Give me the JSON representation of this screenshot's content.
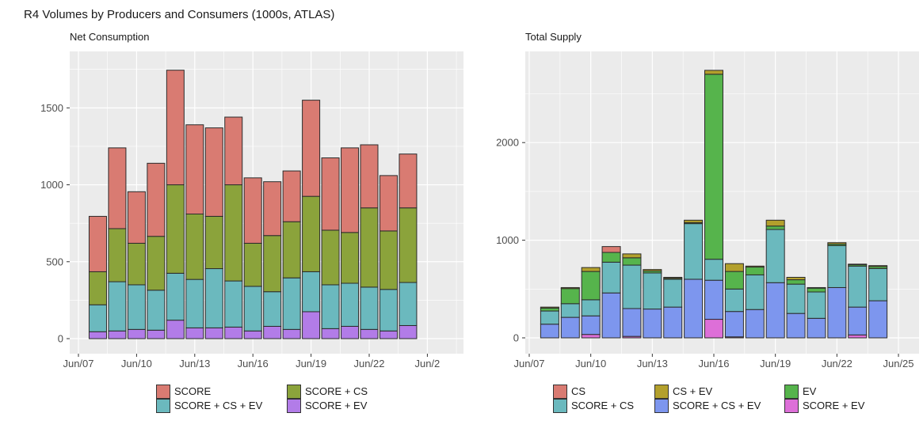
{
  "title": "R4 Volumes by Producers and Consumers (1000s, ATLAS)",
  "colors": {
    "panel_background": "#EBEBEB",
    "gridline": "#FFFFFF",
    "bar_outline": "#2B2B2B",
    "axis_text": "#4D4D4D",
    "title_text": "#1A1A1A"
  },
  "chart_data": [
    {
      "type": "bar",
      "stacked": true,
      "title": "Net Consumption",
      "x_years": [
        2008,
        2009,
        2010,
        2011,
        2012,
        2013,
        2014,
        2015,
        2016,
        2017,
        2018,
        2019,
        2020,
        2021,
        2022,
        2023,
        2024
      ],
      "x_tick_labels": [
        "Jun/07",
        "Jun/10",
        "Jun/13",
        "Jun/16",
        "Jun/19",
        "Jun/22",
        "Jun/2"
      ],
      "y_ticks": [
        0,
        500,
        1000,
        1500
      ],
      "y_minor_ticks": [
        250,
        750,
        1250,
        1750
      ],
      "ylim": [
        0,
        1867
      ],
      "grid": true,
      "legend_position": "bottom",
      "legend_rows": [
        [
          "SCORE",
          "SCORE + CS"
        ],
        [
          "SCORE + CS + EV",
          "SCORE + EV"
        ]
      ],
      "series": [
        {
          "name": "SCORE + EV",
          "color": "#B27CE8",
          "values": [
            45,
            50,
            60,
            55,
            120,
            70,
            70,
            75,
            50,
            80,
            60,
            175,
            65,
            80,
            60,
            50,
            85
          ]
        },
        {
          "name": "SCORE + CS + EV",
          "color": "#6BB9BE",
          "values": [
            175,
            320,
            290,
            260,
            305,
            315,
            385,
            300,
            290,
            225,
            335,
            260,
            285,
            280,
            275,
            270,
            280
          ]
        },
        {
          "name": "SCORE + CS",
          "color": "#8BA33B",
          "values": [
            215,
            345,
            270,
            350,
            575,
            425,
            340,
            625,
            280,
            365,
            365,
            490,
            355,
            330,
            515,
            380,
            485
          ]
        },
        {
          "name": "SCORE",
          "color": "#D97B72",
          "values": [
            360,
            525,
            335,
            475,
            745,
            580,
            575,
            440,
            425,
            350,
            330,
            625,
            470,
            550,
            410,
            360,
            350
          ]
        }
      ]
    },
    {
      "type": "bar",
      "stacked": true,
      "title": "Total Supply",
      "x_years": [
        2008,
        2009,
        2010,
        2011,
        2012,
        2013,
        2014,
        2015,
        2016,
        2017,
        2018,
        2019,
        2020,
        2021,
        2022,
        2023,
        2024
      ],
      "x_tick_labels": [
        "Jun/07",
        "Jun/10",
        "Jun/13",
        "Jun/16",
        "Jun/19",
        "Jun/22",
        "Jun/25"
      ],
      "y_ticks": [
        0,
        1000,
        2000
      ],
      "y_minor_ticks": [
        500,
        1500,
        2500
      ],
      "ylim": [
        0,
        2935
      ],
      "grid": true,
      "legend_position": "bottom",
      "legend_rows": [
        [
          "CS",
          "CS + EV",
          "EV"
        ],
        [
          "SCORE + CS",
          "SCORE + CS + EV",
          "SCORE + EV"
        ]
      ],
      "series": [
        {
          "name": "SCORE + EV",
          "color": "#DD6FD8",
          "values": [
            0,
            0,
            35,
            0,
            15,
            0,
            0,
            0,
            190,
            10,
            0,
            0,
            0,
            0,
            0,
            30,
            0
          ]
        },
        {
          "name": "SCORE + CS + EV",
          "color": "#7D96EE",
          "values": [
            140,
            210,
            190,
            460,
            285,
            295,
            315,
            600,
            400,
            260,
            290,
            565,
            250,
            200,
            515,
            285,
            380
          ]
        },
        {
          "name": "SCORE + CS",
          "color": "#6BB9BE",
          "values": [
            135,
            140,
            165,
            315,
            445,
            370,
            285,
            570,
            215,
            230,
            355,
            545,
            300,
            270,
            430,
            420,
            330
          ]
        },
        {
          "name": "EV",
          "color": "#56B44C",
          "values": [
            30,
            155,
            290,
            100,
            75,
            20,
            10,
            10,
            1895,
            180,
            80,
            35,
            45,
            40,
            15,
            15,
            20
          ]
        },
        {
          "name": "CS + EV",
          "color": "#B3A02C",
          "values": [
            10,
            10,
            40,
            0,
            40,
            15,
            10,
            25,
            40,
            80,
            10,
            60,
            25,
            5,
            15,
            5,
            10
          ]
        },
        {
          "name": "CS",
          "color": "#D97B72",
          "values": [
            0,
            0,
            0,
            60,
            0,
            0,
            0,
            0,
            0,
            0,
            0,
            0,
            0,
            0,
            0,
            0,
            0
          ]
        }
      ]
    }
  ]
}
